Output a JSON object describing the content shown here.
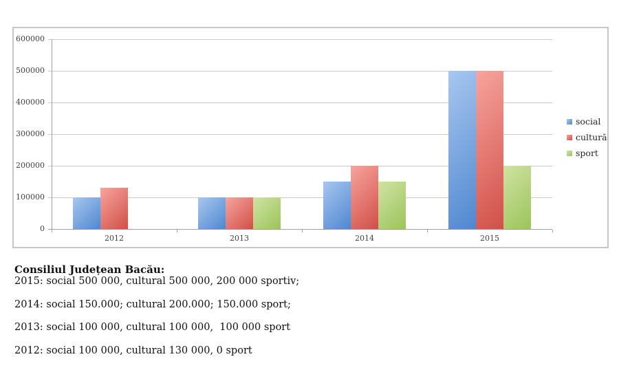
{
  "chart_data": {
    "type": "bar",
    "title": "",
    "xlabel": "",
    "ylabel": "",
    "categories": [
      "2012",
      "2013",
      "2014",
      "2015"
    ],
    "series": [
      {
        "name": "social",
        "values": [
          100000,
          100000,
          150000,
          500000
        ],
        "gradient": [
          "#a8c7f0",
          "#4f87cf"
        ]
      },
      {
        "name": "cultură",
        "values": [
          130000,
          100000,
          200000,
          500000
        ],
        "gradient": [
          "#f7a49e",
          "#d05047"
        ]
      },
      {
        "name": "sport",
        "values": [
          0,
          100000,
          150000,
          200000
        ],
        "gradient": [
          "#cfe3a2",
          "#9cc45c"
        ]
      }
    ],
    "ylim": [
      0,
      600000
    ],
    "ytick_step": 100000,
    "ytick_labels": [
      "0",
      "100000",
      "200000",
      "300000",
      "400000",
      "500000",
      "600000"
    ],
    "grid": true,
    "legend_position": "right"
  },
  "colors": {
    "grid": "#c9c9c9",
    "axis": "#9f9f9f",
    "frame_border": "#c6c6c6",
    "text": "#111111"
  },
  "caption": {
    "heading": "Consiliul Județean Bacău:",
    "lines": [
      "2015: social 500 000, cultural 500 000, 200 000 sportiv;",
      "2014: social 150.000; cultural 200.000; 150.000 sport;",
      "2013: social 100 000, cultural 100 000,  100 000 sport",
      "2012: social 100 000, cultural 130 000, 0 sport"
    ]
  }
}
